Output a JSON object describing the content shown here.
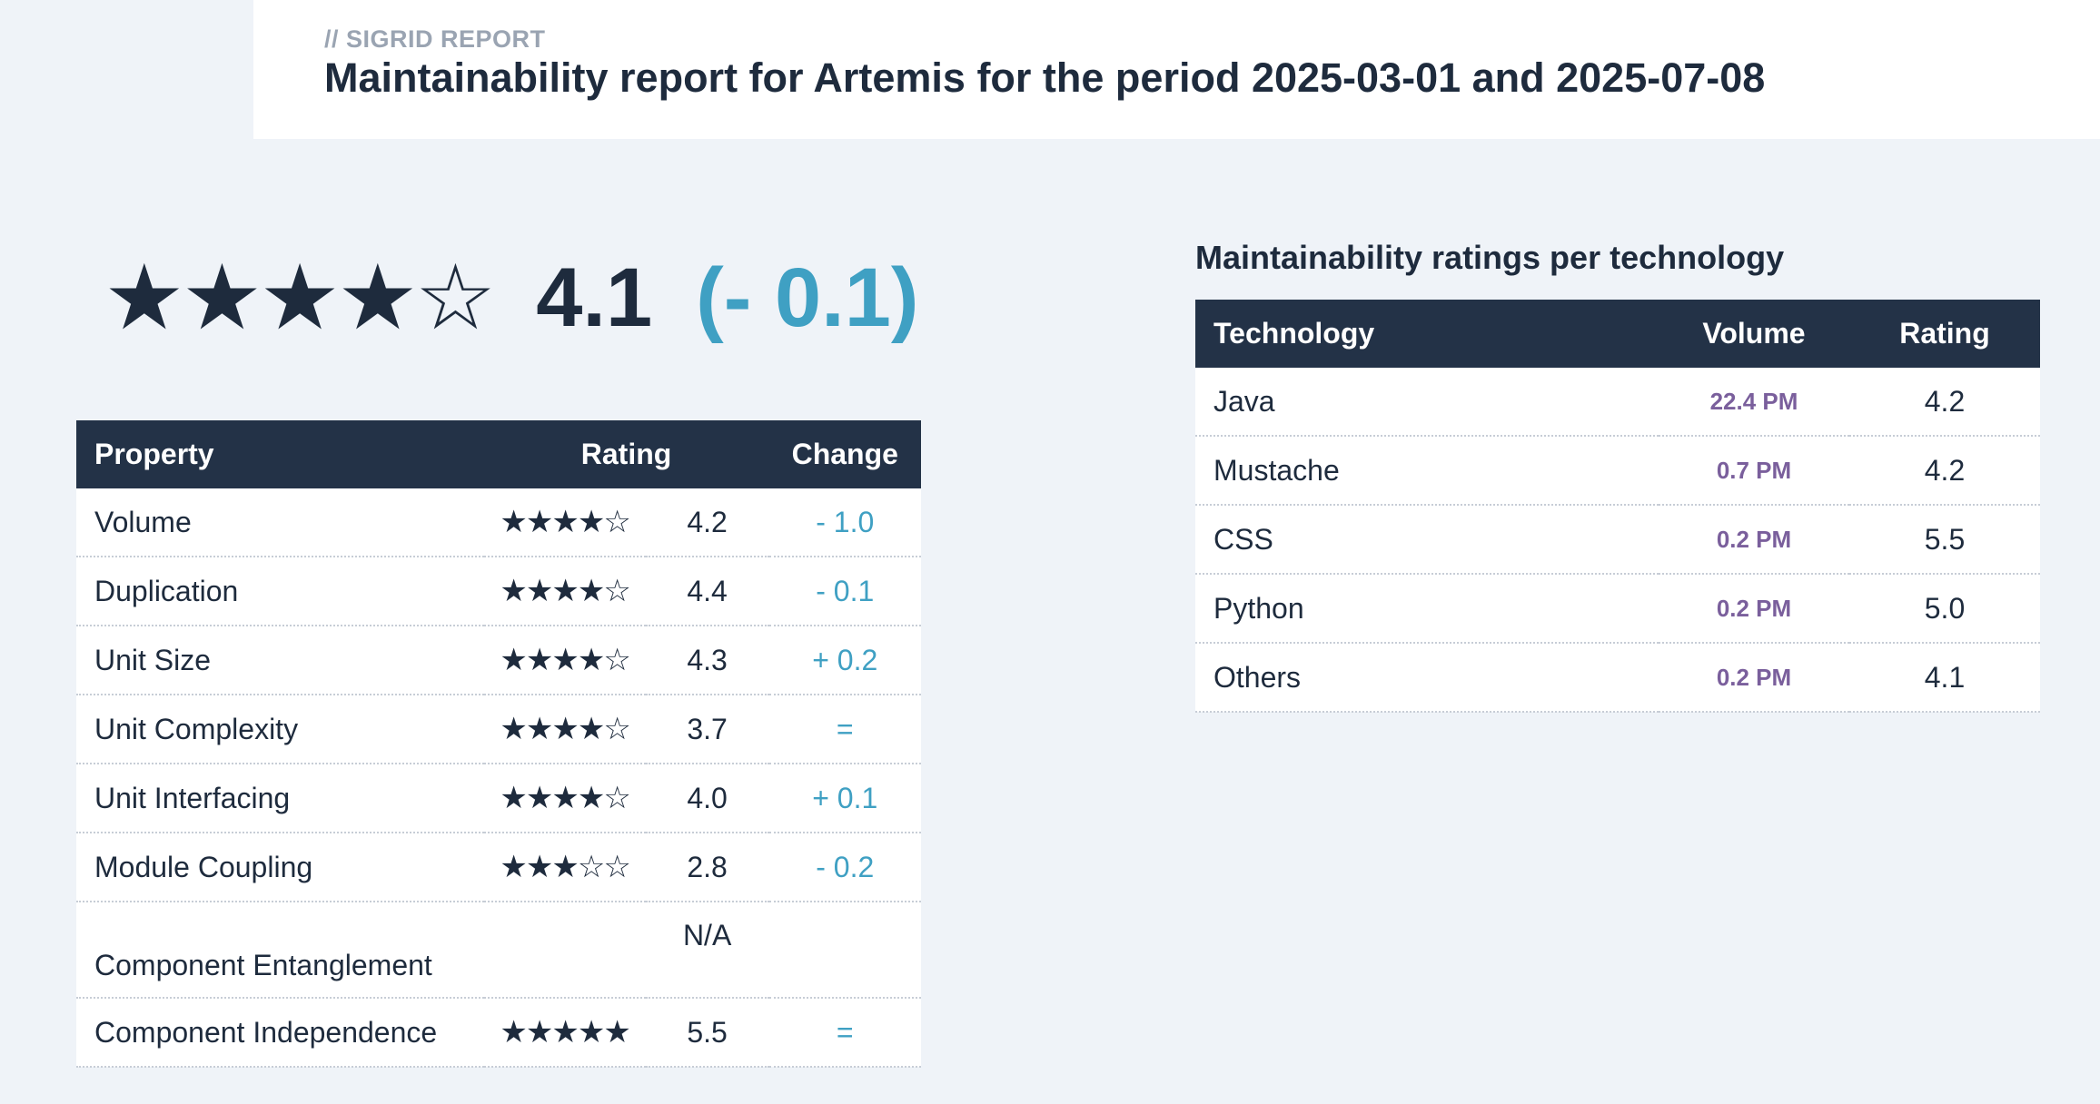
{
  "header": {
    "kicker": "// SIGRID REPORT",
    "title": "Maintainability report for Artemis for the period 2025-03-01 and 2025-07-08"
  },
  "overall": {
    "stars": "★★★★☆",
    "score": "4.1",
    "change": "(- 0.1)"
  },
  "property_table": {
    "headers": {
      "property": "Property",
      "rating": "Rating",
      "change": "Change"
    },
    "rows": [
      {
        "property": "Volume",
        "stars": "★★★★☆",
        "rating": "4.2",
        "change": "- 1.0"
      },
      {
        "property": "Duplication",
        "stars": "★★★★☆",
        "rating": "4.4",
        "change": "- 0.1"
      },
      {
        "property": "Unit Size",
        "stars": "★★★★☆",
        "rating": "4.3",
        "change": "+ 0.2"
      },
      {
        "property": "Unit Complexity",
        "stars": "★★★★☆",
        "rating": "3.7",
        "change": "="
      },
      {
        "property": "Unit Interfacing",
        "stars": "★★★★☆",
        "rating": "4.0",
        "change": "+ 0.1"
      },
      {
        "property": "Module Coupling",
        "stars": "★★★☆☆",
        "rating": "2.8",
        "change": "- 0.2"
      },
      {
        "property": "Component Entanglement",
        "stars": "",
        "rating": "N/A",
        "change": ""
      },
      {
        "property": "Component Independence",
        "stars": "★★★★★",
        "rating": "5.5",
        "change": "="
      }
    ]
  },
  "technology_section": {
    "title": "Maintainability ratings per technology",
    "headers": {
      "technology": "Technology",
      "volume": "Volume",
      "rating": "Rating"
    },
    "rows": [
      {
        "technology": "Java",
        "volume": "22.4 PM",
        "rating": "4.2"
      },
      {
        "technology": "Mustache",
        "volume": "0.7 PM",
        "rating": "4.2"
      },
      {
        "technology": "CSS",
        "volume": "0.2 PM",
        "rating": "5.5"
      },
      {
        "technology": "Python",
        "volume": "0.2 PM",
        "rating": "5.0"
      },
      {
        "technology": "Others",
        "volume": "0.2 PM",
        "rating": "4.1"
      }
    ]
  },
  "colors": {
    "navy": "#233247",
    "text": "#1e2b3d",
    "accent_blue": "#3fa0c3",
    "volume_purple": "#7a5f9c",
    "background": "#eff3f8"
  }
}
